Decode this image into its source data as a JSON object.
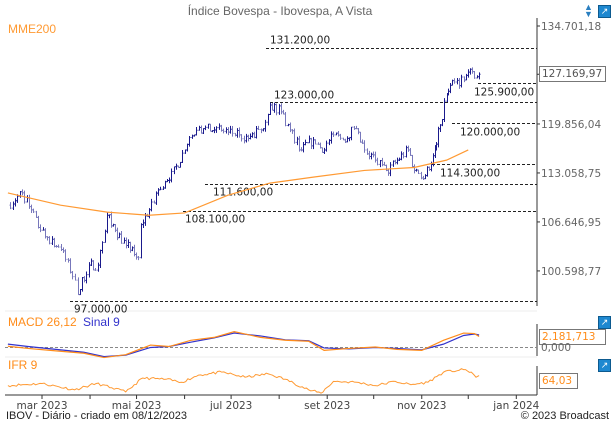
{
  "title": "Índice Bovespa - Ibovespa, A Vista",
  "footer_left": "IBOV - Diário - criado em 08/12/2023",
  "footer_right": "© 2023 Broadcast",
  "icons": {
    "sort": "up-down-arrows-icon",
    "export": "export-icon"
  },
  "colors": {
    "price": "#1a1a8c",
    "mme": "#ff9a33",
    "macd": "#ff8c1a",
    "signal": "#3333cc",
    "grid": "#333333",
    "axis_text": "#666666"
  },
  "chart_data": [
    {
      "type": "ohlc-line",
      "title": "Índice Bovespa - Ibovespa, A Vista",
      "scale": "log",
      "y_ticks": [
        "134.701,18",
        "127.169,97",
        "119.856,04",
        "113.058,75",
        "106.646,95",
        "100.598,77"
      ],
      "y_tick_values": [
        134701.18,
        127169.97,
        119856.04,
        113058.75,
        106646.95,
        100598.77
      ],
      "last_value_label": "127.169,97",
      "x_ticks": [
        "mar 2023",
        "mai 2023",
        "jul 2023",
        "set 2023",
        "nov 2023",
        "jan 2024"
      ],
      "price": {
        "dates": [
          "2023-02-07",
          "2023-02-16",
          "2023-02-28",
          "2023-03-13",
          "2023-03-22",
          "2023-03-24",
          "2023-03-31",
          "2023-04-06",
          "2023-04-12",
          "2023-04-17",
          "2023-04-24",
          "2023-05-02",
          "2023-05-04",
          "2023-05-09",
          "2023-05-15",
          "2023-05-22",
          "2023-06-01",
          "2023-06-07",
          "2023-06-13",
          "2023-06-20",
          "2023-06-29",
          "2023-07-06",
          "2023-07-12",
          "2023-07-20",
          "2023-07-26",
          "2023-08-02",
          "2023-08-08",
          "2023-08-15",
          "2023-08-23",
          "2023-08-30",
          "2023-09-05",
          "2023-09-11",
          "2023-09-18",
          "2023-09-25",
          "2023-10-02",
          "2023-10-09",
          "2023-10-16",
          "2023-10-23",
          "2023-10-27",
          "2023-11-03",
          "2023-11-08",
          "2023-11-13",
          "2023-11-17",
          "2023-11-22",
          "2023-11-28",
          "2023-12-01",
          "2023-12-05",
          "2023-12-08"
        ],
        "close": [
          108800,
          110400,
          105600,
          103200,
          99500,
          97800,
          101300,
          101300,
          107500,
          105600,
          103700,
          102200,
          106300,
          108200,
          110800,
          112100,
          116200,
          118300,
          119200,
          119000,
          118700,
          118300,
          117800,
          119000,
          122600,
          121600,
          119000,
          116200,
          117600,
          116200,
          118300,
          117600,
          119200,
          116200,
          114800,
          113400,
          114800,
          116200,
          113400,
          112700,
          115400,
          119700,
          124100,
          126000,
          126300,
          127500,
          126600,
          127169.97
        ]
      },
      "series": [
        {
          "name": "MME200",
          "dates": [
            "2023-02-07",
            "2023-03-13",
            "2023-04-12",
            "2023-05-09",
            "2023-06-01",
            "2023-06-29",
            "2023-07-26",
            "2023-08-23",
            "2023-09-25",
            "2023-10-27",
            "2023-11-17",
            "2023-12-01"
          ],
          "values": [
            110400,
            108800,
            107900,
            107500,
            107800,
            110100,
            111700,
            112500,
            113400,
            113800,
            114800,
            116200
          ]
        }
      ],
      "levels": [
        {
          "value": 131200,
          "label": "131.200,00"
        },
        {
          "value": 125900,
          "label": "125.900,00"
        },
        {
          "value": 123000,
          "label": "123.000,00"
        },
        {
          "value": 120000,
          "label": "120.000,00"
        },
        {
          "value": 114300,
          "label": "114.300,00"
        },
        {
          "value": 111600,
          "label": "111.600,00"
        },
        {
          "value": 108100,
          "label": "108.100,00"
        },
        {
          "value": 97000,
          "label": "97.000,00"
        }
      ]
    },
    {
      "type": "line",
      "title_macd": "MACD 26,12",
      "title_signal": "Sinal 9",
      "last_value_label": "2.181,713",
      "zero_label": "0,000",
      "dates": [
        "2023-02-07",
        "2023-02-20",
        "2023-03-10",
        "2023-03-28",
        "2023-04-10",
        "2023-04-24",
        "2023-05-10",
        "2023-05-22",
        "2023-06-05",
        "2023-06-20",
        "2023-07-03",
        "2023-07-20",
        "2023-08-05",
        "2023-08-20",
        "2023-08-30",
        "2023-09-15",
        "2023-10-02",
        "2023-10-16",
        "2023-11-01",
        "2023-11-15",
        "2023-11-28",
        "2023-12-05",
        "2023-12-08"
      ],
      "series": [
        {
          "name": "MACD 26,12",
          "values": [
            150,
            -300,
            -800,
            -1300,
            -2200,
            -1600,
            400,
            100,
            1400,
            2000,
            3200,
            2000,
            1400,
            1200,
            -700,
            -300,
            0,
            -500,
            -700,
            1400,
            2900,
            2800,
            2182
          ]
        },
        {
          "name": "Sinal 9",
          "values": [
            600,
            100,
            -500,
            -1100,
            -2000,
            -1700,
            -100,
            100,
            1000,
            1900,
            2900,
            2300,
            1500,
            1300,
            -200,
            -400,
            -100,
            -300,
            -600,
            600,
            2400,
            2700,
            2500
          ]
        }
      ]
    },
    {
      "type": "line",
      "title": "IFR 9",
      "last_value_label": "64,03",
      "dates": [
        "2023-02-07",
        "2023-03-01",
        "2023-03-22",
        "2023-04-05",
        "2023-04-15",
        "2023-04-24",
        "2023-05-05",
        "2023-05-20",
        "2023-05-30",
        "2023-06-10",
        "2023-06-25",
        "2023-07-10",
        "2023-07-25",
        "2023-08-05",
        "2023-08-20",
        "2023-08-28",
        "2023-09-05",
        "2023-09-20",
        "2023-10-02",
        "2023-10-15",
        "2023-10-25",
        "2023-11-05",
        "2023-11-15",
        "2023-11-28",
        "2023-12-03",
        "2023-12-06",
        "2023-12-08"
      ],
      "values": [
        40,
        45,
        30,
        45,
        35,
        25,
        58,
        55,
        48,
        65,
        72,
        60,
        68,
        55,
        30,
        22,
        50,
        48,
        40,
        50,
        42,
        48,
        72,
        78,
        72,
        60,
        64.03
      ]
    }
  ]
}
